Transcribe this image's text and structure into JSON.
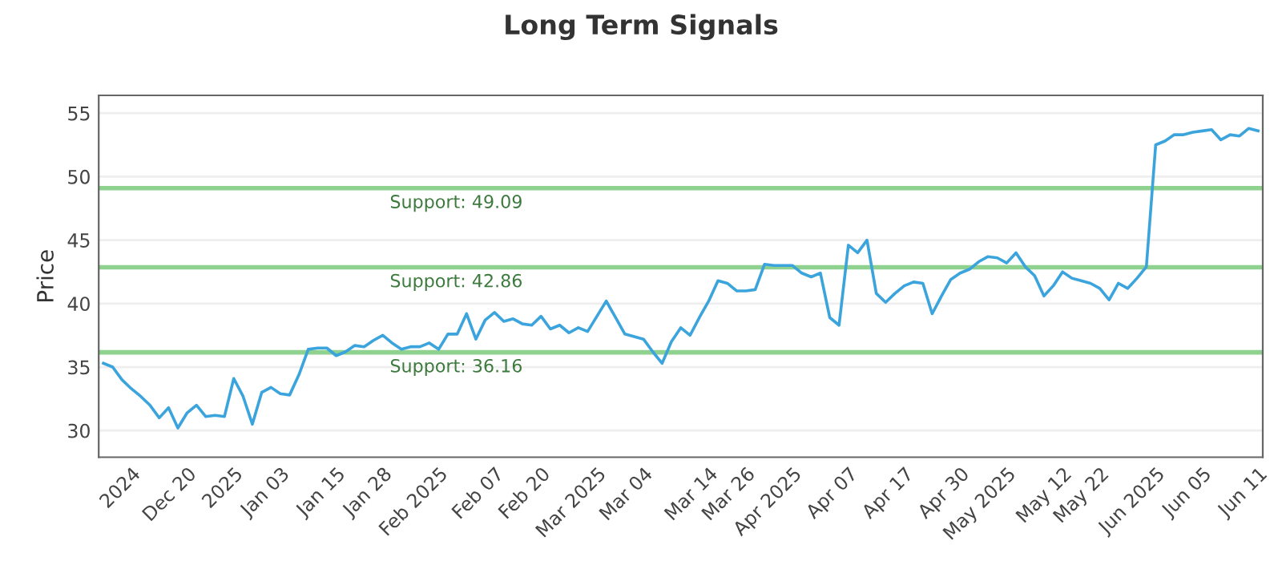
{
  "chart_data": {
    "type": "line",
    "title": "Long Term Signals",
    "ylabel": "Price",
    "categories": [
      null,
      null,
      null,
      "2024",
      null,
      null,
      null,
      null,
      null,
      "Dec 20",
      null,
      null,
      null,
      null,
      "2025",
      null,
      null,
      null,
      null,
      "Jan 03",
      null,
      null,
      null,
      null,
      null,
      "Jan 15",
      null,
      null,
      null,
      null,
      "Jan 28",
      null,
      null,
      null,
      null,
      null,
      "Feb 2025",
      null,
      null,
      null,
      null,
      null,
      "Feb 07",
      null,
      null,
      null,
      null,
      "Feb 20",
      null,
      null,
      null,
      null,
      null,
      "Mar 2025",
      null,
      null,
      null,
      null,
      "Mar 04",
      null,
      null,
      null,
      null,
      null,
      null,
      "Mar 14",
      null,
      null,
      null,
      "Mar 26",
      null,
      null,
      null,
      null,
      "Apr 2025",
      null,
      null,
      null,
      null,
      null,
      "Apr 07",
      null,
      null,
      null,
      null,
      null,
      "Apr 17",
      null,
      null,
      null,
      null,
      null,
      "Apr 30",
      null,
      null,
      null,
      null,
      "May 2025",
      null,
      null,
      null,
      null,
      null,
      "May 12",
      null,
      null,
      null,
      "May 22",
      null,
      null,
      null,
      null,
      null,
      "Jun 2025",
      null,
      null,
      null,
      null,
      "Jun 05",
      null,
      null,
      null,
      null,
      null,
      "Jun 11"
    ],
    "series": [
      {
        "color": "#3ba4dc",
        "values": [
          35.3,
          35.0,
          34.0,
          33.3,
          32.7,
          32.0,
          31.0,
          31.8,
          30.2,
          31.4,
          32.0,
          31.1,
          31.2,
          31.1,
          34.1,
          32.7,
          30.5,
          33.0,
          33.4,
          32.9,
          32.8,
          34.4,
          36.4,
          36.5,
          36.5,
          35.9,
          36.2,
          36.7,
          36.6,
          37.1,
          37.5,
          36.9,
          36.4,
          36.6,
          36.6,
          36.9,
          36.4,
          37.6,
          37.6,
          39.2,
          37.2,
          38.7,
          39.3,
          38.6,
          38.8,
          38.4,
          38.3,
          39.0,
          38.0,
          38.3,
          37.7,
          38.1,
          37.8,
          39.0,
          40.2,
          38.9,
          37.6,
          37.4,
          37.2,
          36.2,
          35.3,
          37.0,
          38.1,
          37.5,
          38.9,
          40.2,
          41.8,
          41.6,
          41.0,
          41.0,
          41.1,
          43.1,
          43.0,
          43.0,
          43.0,
          42.4,
          42.1,
          42.4,
          38.9,
          38.3,
          44.6,
          44.0,
          45.0,
          40.8,
          40.1,
          40.8,
          41.4,
          41.7,
          41.6,
          39.2,
          40.6,
          41.9,
          42.4,
          42.7,
          43.3,
          43.7,
          43.6,
          43.2,
          44.0,
          42.9,
          42.2,
          40.6,
          41.4,
          42.5,
          42.0,
          41.8,
          41.6,
          41.2,
          40.3,
          41.6,
          41.2,
          42.0,
          42.9,
          52.5,
          52.8,
          53.3,
          53.3,
          53.5,
          53.6,
          53.7,
          52.9,
          53.3,
          53.2,
          53.8,
          53.6
        ]
      }
    ],
    "ylim": [
      27.9,
      56.4
    ],
    "yticks": [
      30,
      35,
      40,
      45,
      50,
      55
    ],
    "grid": "y",
    "marker": "none",
    "line_style": "solid",
    "ref_lines": [
      {
        "axis": "y",
        "value": 49.09,
        "label": "Support: 49.09",
        "color": "#8fd18f"
      },
      {
        "axis": "y",
        "value": 42.86,
        "label": "Support: 42.86",
        "color": "#8fd18f"
      },
      {
        "axis": "y",
        "value": 36.16,
        "label": "Support: 36.16",
        "color": "#8fd18f"
      }
    ]
  }
}
